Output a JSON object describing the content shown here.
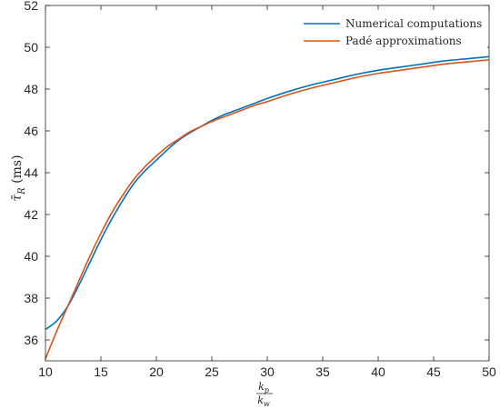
{
  "chart_data": {
    "type": "line",
    "title": "",
    "xlabel": {
      "numerator": "k",
      "numerator_sub": "p",
      "denominator": "k",
      "denominator_sub": "w"
    },
    "ylabel": {
      "symbol": "τ̄",
      "subscript": "R",
      "unit": " (ms)"
    },
    "xlim": [
      10,
      50
    ],
    "ylim": [
      35,
      52
    ],
    "xticks": [
      10,
      15,
      20,
      25,
      30,
      35,
      40,
      45,
      50
    ],
    "yticks": [
      36,
      38,
      40,
      42,
      44,
      46,
      48,
      50,
      52
    ],
    "grid": false,
    "legend_position": "top-right",
    "series": [
      {
        "name": "Numerical computations",
        "color": "#0072BD",
        "x": [
          10,
          11,
          12,
          13,
          14,
          15,
          16,
          17,
          18,
          19,
          20,
          21,
          22,
          23,
          24,
          25,
          26,
          27,
          28,
          29,
          30,
          32,
          34,
          36,
          38,
          40,
          42,
          44,
          46,
          48,
          50
        ],
        "y": [
          36.5,
          36.9,
          37.6,
          38.6,
          39.7,
          40.8,
          41.8,
          42.7,
          43.5,
          44.1,
          44.6,
          45.1,
          45.55,
          45.9,
          46.2,
          46.5,
          46.75,
          46.95,
          47.15,
          47.35,
          47.55,
          47.9,
          48.2,
          48.45,
          48.7,
          48.9,
          49.05,
          49.2,
          49.35,
          49.45,
          49.55
        ]
      },
      {
        "name": "Padé approximations",
        "color": "#D95319",
        "x": [
          10,
          11,
          12,
          13,
          14,
          15,
          16,
          17,
          18,
          19,
          20,
          21,
          22,
          23,
          24,
          25,
          26,
          27,
          28,
          29,
          30,
          32,
          34,
          36,
          38,
          40,
          42,
          44,
          46,
          48,
          50
        ],
        "y": [
          35.1,
          36.4,
          37.6,
          38.8,
          40.0,
          41.1,
          42.1,
          42.95,
          43.7,
          44.3,
          44.8,
          45.25,
          45.6,
          45.95,
          46.2,
          46.45,
          46.65,
          46.85,
          47.05,
          47.25,
          47.4,
          47.75,
          48.05,
          48.3,
          48.55,
          48.75,
          48.9,
          49.05,
          49.2,
          49.3,
          49.4
        ]
      }
    ]
  }
}
